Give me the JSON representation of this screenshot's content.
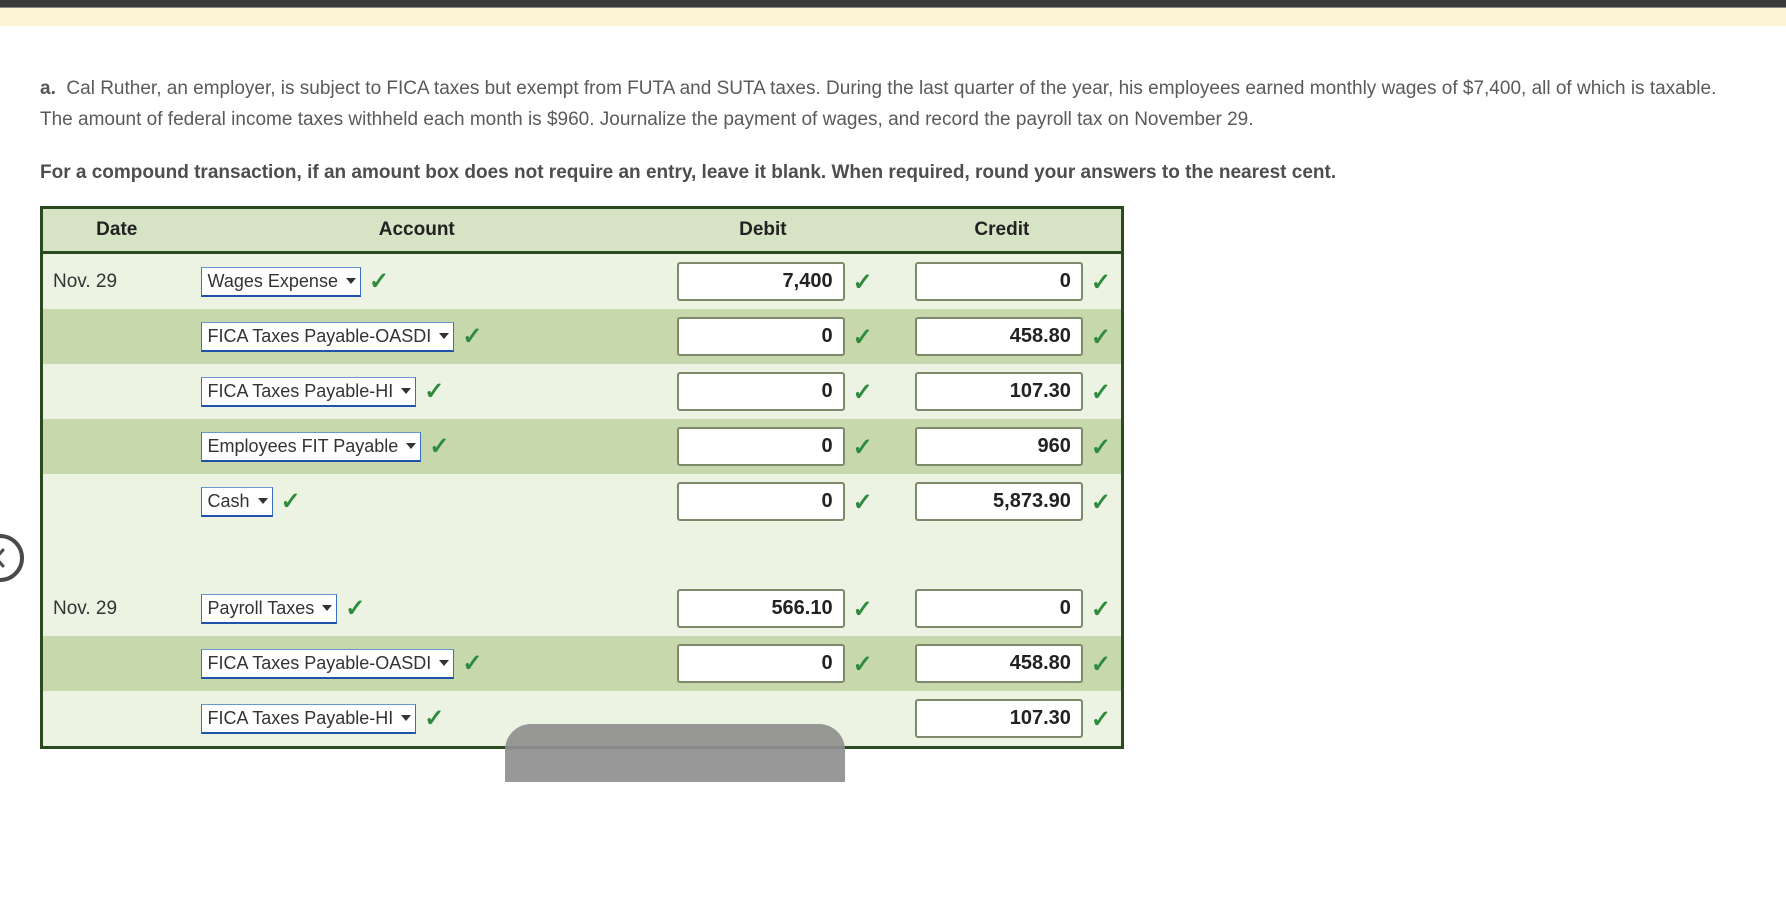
{
  "problem": {
    "label": "a.",
    "text": "Cal Ruther, an employer, is subject to FICA taxes but exempt from FUTA and SUTA taxes. During the last quarter of the year, his employees earned monthly wages of $7,400, all of which is taxable. The amount of federal income taxes withheld each month is $960. Journalize the payment of wages, and record the payroll tax on November 29."
  },
  "instruction": "For a compound transaction, if an amount box does not require an entry, leave it blank. When required, round your answers to the nearest cent.",
  "table": {
    "headers": {
      "date": "Date",
      "account": "Account",
      "debit": "Debit",
      "credit": "Credit"
    },
    "rows": [
      {
        "date": "Nov. 29",
        "account": "Wages Expense",
        "debit": "7,400",
        "credit": "0",
        "shade": "light"
      },
      {
        "date": "",
        "account": "FICA Taxes Payable-OASDI",
        "debit": "0",
        "credit": "458.80",
        "shade": "dark"
      },
      {
        "date": "",
        "account": "FICA Taxes Payable-HI",
        "debit": "0",
        "credit": "107.30",
        "shade": "light"
      },
      {
        "date": "",
        "account": "Employees FIT Payable",
        "debit": "0",
        "credit": "960",
        "shade": "dark"
      },
      {
        "date": "",
        "account": "Cash",
        "debit": "0",
        "credit": "5,873.90",
        "shade": "light"
      },
      {
        "spacer": true
      },
      {
        "date": "Nov. 29",
        "account": "Payroll Taxes",
        "debit": "566.10",
        "credit": "0",
        "shade": "light"
      },
      {
        "date": "",
        "account": "FICA Taxes Payable-OASDI",
        "debit": "0",
        "credit": "458.80",
        "shade": "dark"
      },
      {
        "date": "",
        "account": "FICA Taxes Payable-HI",
        "debit": "",
        "credit": "107.30",
        "shade": "light"
      }
    ]
  },
  "colors": {
    "header_bg": "#d6e3c4",
    "row_light": "#edf3e3",
    "row_dark": "#c6d8ac",
    "border": "#2b4a1f",
    "check": "#2e8b3d",
    "select_underline": "#1f52a8"
  }
}
